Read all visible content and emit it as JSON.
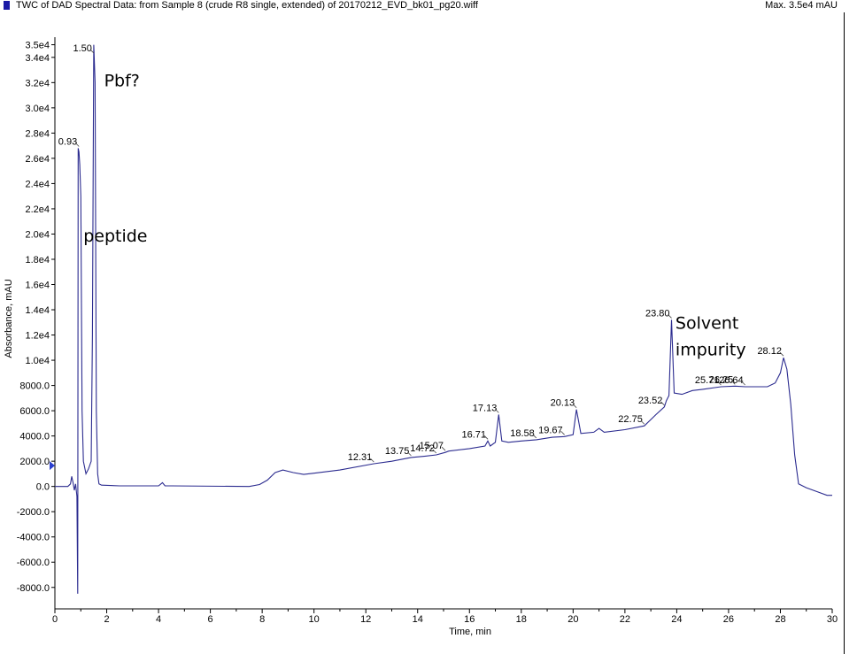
{
  "header": {
    "title": "TWC of DAD Spectral Data: from Sample 8 (crude R8 single, extended) of 20170212_EVD_bk01_pg20.wiff",
    "max_label": "Max. 3.5e4 mAU"
  },
  "colors": {
    "trace": "#2b2b8f",
    "title_icon": "#1a1aa6",
    "marker": "#2b3fd0"
  },
  "chart_data": {
    "type": "line",
    "xlabel": "Time, min",
    "ylabel": "Absorbance, mAU",
    "xlim": [
      0,
      30
    ],
    "ylim": [
      -9700,
      35600
    ],
    "grid": false,
    "x_ticks": [
      "0",
      "2",
      "4",
      "6",
      "8",
      "10",
      "12",
      "14",
      "16",
      "18",
      "20",
      "22",
      "24",
      "26",
      "28",
      "30"
    ],
    "y_ticks": [
      {
        "label": "3.5e4",
        "value": 35000
      },
      {
        "label": "3.4e4",
        "value": 34000
      },
      {
        "label": "3.2e4",
        "value": 32000
      },
      {
        "label": "3.0e4",
        "value": 30000
      },
      {
        "label": "2.8e4",
        "value": 28000
      },
      {
        "label": "2.6e4",
        "value": 26000
      },
      {
        "label": "2.4e4",
        "value": 24000
      },
      {
        "label": "2.2e4",
        "value": 22000
      },
      {
        "label": "2.0e4",
        "value": 20000
      },
      {
        "label": "1.8e4",
        "value": 18000
      },
      {
        "label": "1.6e4",
        "value": 16000
      },
      {
        "label": "1.4e4",
        "value": 14000
      },
      {
        "label": "1.2e4",
        "value": 12000
      },
      {
        "label": "1.0e4",
        "value": 10000
      },
      {
        "label": "8000.0",
        "value": 8000
      },
      {
        "label": "6000.0",
        "value": 6000
      },
      {
        "label": "4000.0",
        "value": 4000
      },
      {
        "label": "2000.0",
        "value": 2000
      },
      {
        "label": "0.0",
        "value": 0
      },
      {
        "label": "-2000.0",
        "value": -2000
      },
      {
        "label": "-4000.0",
        "value": -4000
      },
      {
        "label": "-6000.0",
        "value": -6000
      },
      {
        "label": "-8000.0",
        "value": -8000
      }
    ],
    "series": [
      {
        "points": [
          [
            0.0,
            0
          ],
          [
            0.5,
            0
          ],
          [
            0.6,
            200
          ],
          [
            0.65,
            800
          ],
          [
            0.7,
            300
          ],
          [
            0.75,
            -300
          ],
          [
            0.8,
            200
          ],
          [
            0.85,
            -800
          ],
          [
            0.88,
            -8500
          ],
          [
            0.9,
            26800
          ],
          [
            0.93,
            26500
          ],
          [
            0.96,
            25500
          ],
          [
            1.0,
            23000
          ],
          [
            1.05,
            6000
          ],
          [
            1.1,
            2000
          ],
          [
            1.2,
            1000
          ],
          [
            1.3,
            1400
          ],
          [
            1.4,
            2000
          ],
          [
            1.45,
            12000
          ],
          [
            1.5,
            35000
          ],
          [
            1.55,
            32000
          ],
          [
            1.6,
            6000
          ],
          [
            1.65,
            1000
          ],
          [
            1.7,
            200
          ],
          [
            1.8,
            100
          ],
          [
            2.5,
            50
          ],
          [
            4.0,
            50
          ],
          [
            4.15,
            300
          ],
          [
            4.25,
            50
          ],
          [
            4.5,
            50
          ],
          [
            7.5,
            0
          ],
          [
            7.9,
            150
          ],
          [
            8.2,
            500
          ],
          [
            8.5,
            1100
          ],
          [
            8.8,
            1300
          ],
          [
            9.2,
            1100
          ],
          [
            9.6,
            950
          ],
          [
            10.0,
            1050
          ],
          [
            11.0,
            1300
          ],
          [
            12.31,
            1800
          ],
          [
            13.0,
            2000
          ],
          [
            13.75,
            2300
          ],
          [
            14.3,
            2400
          ],
          [
            14.72,
            2500
          ],
          [
            15.07,
            2700
          ],
          [
            15.2,
            2800
          ],
          [
            16.0,
            3000
          ],
          [
            16.6,
            3200
          ],
          [
            16.71,
            3600
          ],
          [
            16.8,
            3200
          ],
          [
            17.0,
            3500
          ],
          [
            17.13,
            5700
          ],
          [
            17.25,
            3600
          ],
          [
            17.5,
            3500
          ],
          [
            18.0,
            3600
          ],
          [
            18.58,
            3700
          ],
          [
            19.2,
            3900
          ],
          [
            19.67,
            3950
          ],
          [
            20.0,
            4100
          ],
          [
            20.13,
            6100
          ],
          [
            20.3,
            4200
          ],
          [
            20.8,
            4300
          ],
          [
            21.0,
            4600
          ],
          [
            21.2,
            4300
          ],
          [
            22.0,
            4500
          ],
          [
            22.75,
            4800
          ],
          [
            23.0,
            5300
          ],
          [
            23.2,
            5700
          ],
          [
            23.52,
            6300
          ],
          [
            23.6,
            6800
          ],
          [
            23.7,
            7200
          ],
          [
            23.8,
            13200
          ],
          [
            23.9,
            7400
          ],
          [
            24.2,
            7300
          ],
          [
            24.6,
            7600
          ],
          [
            25.0,
            7700
          ],
          [
            25.71,
            7900
          ],
          [
            26.25,
            7950
          ],
          [
            26.64,
            7900
          ],
          [
            27.2,
            7900
          ],
          [
            27.5,
            7900
          ],
          [
            27.8,
            8200
          ],
          [
            28.0,
            9000
          ],
          [
            28.12,
            10200
          ],
          [
            28.25,
            9300
          ],
          [
            28.4,
            6500
          ],
          [
            28.55,
            2500
          ],
          [
            28.7,
            200
          ],
          [
            29.0,
            -100
          ],
          [
            29.4,
            -400
          ],
          [
            29.8,
            -700
          ],
          [
            30.0,
            -700
          ]
        ]
      }
    ],
    "peak_labels": [
      {
        "text": "0.93",
        "x": 0.93,
        "y": 26800
      },
      {
        "text": "1.50",
        "x": 1.5,
        "y": 34200
      },
      {
        "text": "12.31",
        "x": 12.31,
        "y": 1800
      },
      {
        "text": "13.75",
        "x": 13.75,
        "y": 2300
      },
      {
        "text": "14.72",
        "x": 14.72,
        "y": 2500
      },
      {
        "text": "15.07",
        "x": 15.07,
        "y": 2700
      },
      {
        "text": "16.71",
        "x": 16.71,
        "y": 3600
      },
      {
        "text": "17.13",
        "x": 17.13,
        "y": 5700
      },
      {
        "text": "18.58",
        "x": 18.58,
        "y": 3700
      },
      {
        "text": "19.67",
        "x": 19.67,
        "y": 3950
      },
      {
        "text": "20.13",
        "x": 20.13,
        "y": 6100
      },
      {
        "text": "22.75",
        "x": 22.75,
        "y": 4800
      },
      {
        "text": "23.52",
        "x": 23.52,
        "y": 6300
      },
      {
        "text": "23.80",
        "x": 23.8,
        "y": 13200
      },
      {
        "text": "25.71",
        "x": 25.71,
        "y": 7900
      },
      {
        "text": "26.25",
        "x": 26.25,
        "y": 7950
      },
      {
        "text": "26.64",
        "x": 26.64,
        "y": 7900
      },
      {
        "text": "28.12",
        "x": 28.12,
        "y": 10200
      }
    ],
    "annotations": [
      {
        "text": "Pbf?",
        "x": 1.9,
        "y": 31700
      },
      {
        "text": "peptide",
        "x": 1.1,
        "y": 19400
      },
      {
        "text": "Solvent",
        "x": 23.95,
        "y": 12500
      },
      {
        "text": "impurity",
        "x": 23.95,
        "y": 10400
      }
    ]
  }
}
